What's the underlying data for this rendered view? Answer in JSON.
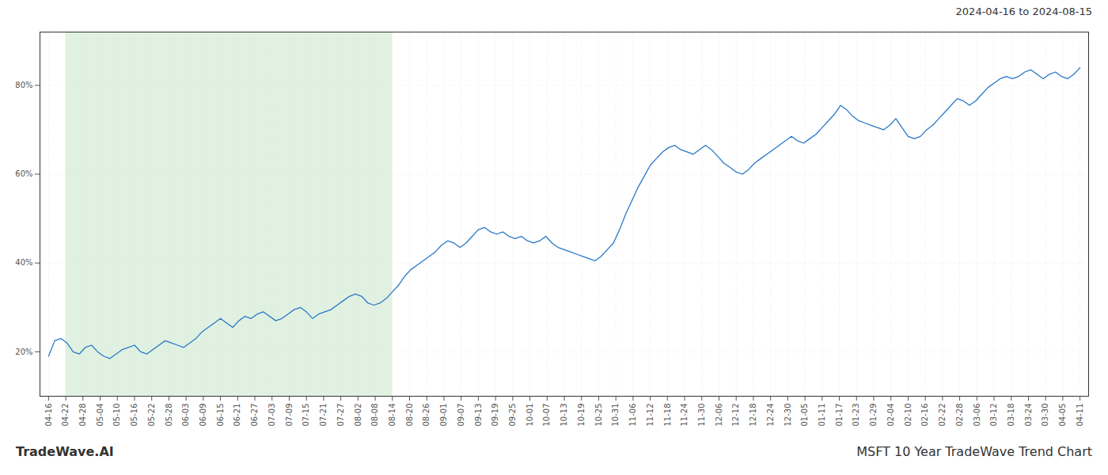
{
  "chart_data": {
    "type": "line",
    "title": "MSFT 10 Year TradeWave Trend Chart",
    "subtitle": "2024-04-16 to 2024-08-15",
    "annotations": [
      "TradeWave.AI"
    ],
    "color": "#2878c8",
    "grid": true,
    "line_style": "solid",
    "shade": {
      "from": 1,
      "to": 20,
      "color": "#c8e6c9"
    },
    "xlim": [
      -0.5,
      60.5
    ],
    "xticks": [
      {
        "value": 0,
        "label": "04-16"
      },
      {
        "value": 1,
        "label": "04-22"
      },
      {
        "value": 2,
        "label": "04-28"
      },
      {
        "value": 3,
        "label": "05-04"
      },
      {
        "value": 4,
        "label": "05-10"
      },
      {
        "value": 5,
        "label": "05-16"
      },
      {
        "value": 6,
        "label": "05-22"
      },
      {
        "value": 7,
        "label": "05-28"
      },
      {
        "value": 8,
        "label": "06-03"
      },
      {
        "value": 9,
        "label": "06-09"
      },
      {
        "value": 10,
        "label": "06-15"
      },
      {
        "value": 11,
        "label": "06-21"
      },
      {
        "value": 12,
        "label": "06-27"
      },
      {
        "value": 13,
        "label": "07-03"
      },
      {
        "value": 14,
        "label": "07-09"
      },
      {
        "value": 15,
        "label": "07-15"
      },
      {
        "value": 16,
        "label": "07-21"
      },
      {
        "value": 17,
        "label": "07-27"
      },
      {
        "value": 18,
        "label": "08-02"
      },
      {
        "value": 19,
        "label": "08-08"
      },
      {
        "value": 20,
        "label": "08-14"
      },
      {
        "value": 21,
        "label": "08-20"
      },
      {
        "value": 22,
        "label": "08-26"
      },
      {
        "value": 23,
        "label": "09-01"
      },
      {
        "value": 24,
        "label": "09-07"
      },
      {
        "value": 25,
        "label": "09-13"
      },
      {
        "value": 26,
        "label": "09-19"
      },
      {
        "value": 27,
        "label": "09-25"
      },
      {
        "value": 28,
        "label": "10-01"
      },
      {
        "value": 29,
        "label": "10-07"
      },
      {
        "value": 30,
        "label": "10-13"
      },
      {
        "value": 31,
        "label": "10-19"
      },
      {
        "value": 32,
        "label": "10-25"
      },
      {
        "value": 33,
        "label": "10-31"
      },
      {
        "value": 34,
        "label": "11-06"
      },
      {
        "value": 35,
        "label": "11-12"
      },
      {
        "value": 36,
        "label": "11-18"
      },
      {
        "value": 37,
        "label": "11-24"
      },
      {
        "value": 38,
        "label": "11-30"
      },
      {
        "value": 39,
        "label": "12-06"
      },
      {
        "value": 40,
        "label": "12-12"
      },
      {
        "value": 41,
        "label": "12-18"
      },
      {
        "value": 42,
        "label": "12-24"
      },
      {
        "value": 43,
        "label": "12-30"
      },
      {
        "value": 44,
        "label": "01-05"
      },
      {
        "value": 45,
        "label": "01-11"
      },
      {
        "value": 46,
        "label": "01-17"
      },
      {
        "value": 47,
        "label": "01-23"
      },
      {
        "value": 48,
        "label": "01-29"
      },
      {
        "value": 49,
        "label": "02-04"
      },
      {
        "value": 50,
        "label": "02-10"
      },
      {
        "value": 51,
        "label": "02-16"
      },
      {
        "value": 52,
        "label": "02-22"
      },
      {
        "value": 53,
        "label": "02-28"
      },
      {
        "value": 54,
        "label": "03-06"
      },
      {
        "value": 55,
        "label": "03-12"
      },
      {
        "value": 56,
        "label": "03-18"
      },
      {
        "value": 57,
        "label": "03-24"
      },
      {
        "value": 58,
        "label": "03-30"
      },
      {
        "value": 59,
        "label": "04-05"
      },
      {
        "value": 60,
        "label": "04-11"
      }
    ],
    "ylim": [
      10,
      92
    ],
    "yticks": [
      {
        "value": 20,
        "label": "20%"
      },
      {
        "value": 40,
        "label": "40%"
      },
      {
        "value": 60,
        "label": "60%"
      },
      {
        "value": 80,
        "label": "80%"
      }
    ],
    "x": [
      0,
      0.357143,
      0.714286,
      1.071429,
      1.428571,
      1.785714,
      2.142857,
      2.5,
      2.857143,
      3.214286,
      3.571429,
      3.928571,
      4.285714,
      4.642857,
      5,
      5.357143,
      5.714286,
      6.071429,
      6.428571,
      6.785714,
      7.142857,
      7.5,
      7.857143,
      8.214286,
      8.571429,
      8.928571,
      9.285714,
      9.642857,
      10,
      10.357143,
      10.714286,
      11.071429,
      11.428571,
      11.785714,
      12.142857,
      12.5,
      12.857143,
      13.214286,
      13.571429,
      13.928571,
      14.285714,
      14.642857,
      15,
      15.357143,
      15.714286,
      16.071429,
      16.428571,
      16.785714,
      17.142857,
      17.5,
      17.857143,
      18.214286,
      18.571429,
      18.928571,
      19.285714,
      19.642857,
      20,
      20.357143,
      20.714286,
      21.071429,
      21.428571,
      21.785714,
      22.142857,
      22.5,
      22.857143,
      23.214286,
      23.571429,
      23.928571,
      24.285714,
      24.642857,
      25,
      25.357143,
      25.714286,
      26.071429,
      26.428571,
      26.785714,
      27.142857,
      27.5,
      27.857143,
      28.214286,
      28.571429,
      28.928571,
      29.285714,
      29.642857,
      30,
      30.357143,
      30.714286,
      31.071429,
      31.428571,
      31.785714,
      32.142857,
      32.5,
      32.857143,
      33.214286,
      33.571429,
      33.928571,
      34.285714,
      34.642857,
      35,
      35.357143,
      35.714286,
      36.071429,
      36.428571,
      36.785714,
      37.142857,
      37.5,
      37.857143,
      38.214286,
      38.571429,
      38.928571,
      39.285714,
      39.642857,
      40,
      40.357143,
      40.714286,
      41.071429,
      41.428571,
      41.785714,
      42.142857,
      42.5,
      42.857143,
      43.214286,
      43.571429,
      43.928571,
      44.285714,
      44.642857,
      45,
      45.357143,
      45.714286,
      46.071429,
      46.428571,
      46.785714,
      47.142857,
      47.5,
      47.857143,
      48.214286,
      48.571429,
      48.928571,
      49.285714,
      49.642857,
      50,
      50.357143,
      50.714286,
      51.071429,
      51.428571,
      51.785714,
      52.142857,
      52.5,
      52.857143,
      53.214286,
      53.571429,
      53.928571,
      54.285714,
      54.642857,
      55,
      55.357143,
      55.714286,
      56.071429,
      56.428571,
      56.785714,
      57.142857,
      57.5,
      57.857143,
      58.214286,
      58.571429,
      58.928571,
      59.285714,
      59.642857,
      60
    ],
    "values": [
      19.0,
      22.5,
      23.0,
      22.0,
      20.0,
      19.5,
      21.0,
      21.5,
      20.0,
      19.0,
      18.5,
      19.5,
      20.5,
      21.0,
      21.5,
      20.0,
      19.5,
      20.5,
      21.5,
      22.5,
      22.0,
      21.5,
      21.0,
      22.0,
      23.0,
      24.5,
      25.5,
      26.5,
      27.5,
      26.5,
      25.5,
      27.0,
      28.0,
      27.5,
      28.5,
      29.0,
      28.0,
      27.0,
      27.5,
      28.5,
      29.5,
      30.0,
      29.0,
      27.5,
      28.5,
      29.0,
      29.5,
      30.5,
      31.5,
      32.5,
      33.0,
      32.5,
      31.0,
      30.5,
      31.0,
      32.0,
      33.5,
      35.0,
      37.0,
      38.5,
      39.5,
      40.5,
      41.5,
      42.5,
      44.0,
      45.0,
      44.5,
      43.5,
      44.5,
      46.0,
      47.5,
      48.0,
      47.0,
      46.5,
      47.0,
      46.0,
      45.5,
      46.0,
      45.0,
      44.5,
      45.0,
      46.0,
      44.5,
      43.5,
      43.0,
      42.5,
      42.0,
      41.5,
      41.0,
      40.5,
      41.5,
      43.0,
      44.5,
      47.5,
      51.0,
      54.0,
      57.0,
      59.5,
      62.0,
      63.5,
      65.0,
      66.0,
      66.5,
      65.5,
      65.0,
      64.5,
      65.5,
      66.5,
      65.5,
      64.0,
      62.5,
      61.5,
      60.5,
      60.0,
      61.0,
      62.5,
      63.5,
      64.5,
      65.5,
      66.5,
      67.5,
      68.5,
      67.5,
      67.0,
      68.0,
      69.0,
      70.5,
      72.0,
      73.5,
      75.5,
      74.5,
      73.0,
      72.0,
      71.5,
      71.0,
      70.5,
      70.0,
      71.0,
      72.5,
      70.5,
      68.5,
      68.0,
      68.5,
      70.0,
      71.0,
      72.5,
      74.0,
      75.5,
      77.0,
      76.5,
      75.5,
      76.5,
      78.0,
      79.5,
      80.5,
      81.5,
      82.0,
      81.5,
      82.0,
      83.0,
      83.5,
      82.5,
      81.5,
      82.5,
      83.0,
      82.0,
      81.5,
      82.5,
      84.0
    ]
  }
}
